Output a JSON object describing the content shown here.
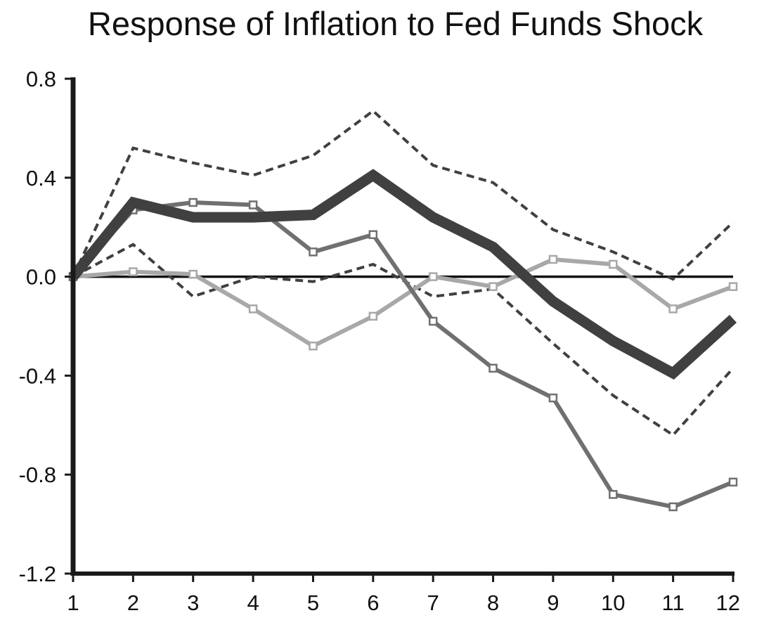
{
  "chart_data": {
    "type": "line",
    "title": "Response of Inflation to Fed Funds Shock",
    "xlabel": "",
    "ylabel": "",
    "x": [
      1,
      2,
      3,
      4,
      5,
      6,
      7,
      8,
      9,
      10,
      11,
      12
    ],
    "xlim": [
      1,
      12
    ],
    "ylim": [
      -1.2,
      0.8
    ],
    "yticks": [
      0.8,
      0.4,
      0.0,
      -0.4,
      -0.8,
      -1.2
    ],
    "ytick_labels": [
      "0.8",
      "0.4",
      "0.0",
      "-0.4",
      "-0.8",
      "-1.2"
    ],
    "xtick_labels": [
      "1",
      "2",
      "3",
      "4",
      "5",
      "6",
      "7",
      "8",
      "9",
      "10",
      "11",
      "12"
    ],
    "grid": false,
    "legend": "none",
    "zero_line": true,
    "series": [
      {
        "style": "thick-solid",
        "color": "#404040",
        "values": [
          0.0,
          0.3,
          0.24,
          0.24,
          0.25,
          0.41,
          0.24,
          0.12,
          -0.1,
          -0.26,
          -0.39,
          -0.17
        ]
      },
      {
        "style": "dashed-upper",
        "color": "#404040",
        "values": [
          0.0,
          0.52,
          0.46,
          0.41,
          0.49,
          0.67,
          0.45,
          0.38,
          0.19,
          0.1,
          -0.01,
          0.22
        ]
      },
      {
        "style": "dashed-lower",
        "color": "#404040",
        "values": [
          0.0,
          0.13,
          -0.08,
          0.0,
          -0.02,
          0.05,
          -0.08,
          -0.05,
          -0.27,
          -0.48,
          -0.64,
          -0.37
        ]
      },
      {
        "style": "square-markers-dark",
        "color": "#707070",
        "values": [
          0.0,
          0.27,
          0.3,
          0.29,
          0.1,
          0.17,
          -0.18,
          -0.37,
          -0.49,
          -0.88,
          -0.93,
          -0.83
        ]
      },
      {
        "style": "square-markers-light",
        "color": "#a8a8a8",
        "values": [
          0.0,
          0.02,
          0.01,
          -0.13,
          -0.28,
          -0.16,
          0.0,
          -0.04,
          0.07,
          0.05,
          -0.13,
          -0.04
        ]
      }
    ]
  }
}
